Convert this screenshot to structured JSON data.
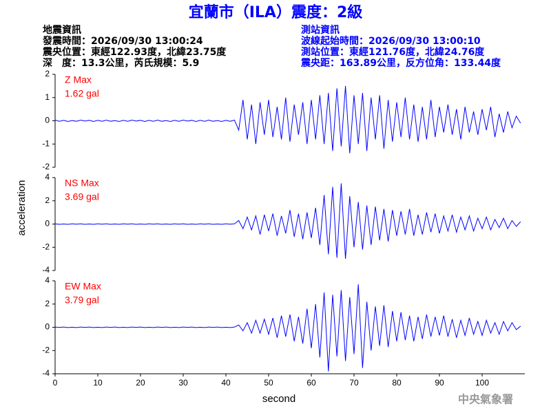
{
  "header": {
    "title": "宜蘭市（ILA）震度：2級",
    "left": [
      "地震資訊",
      "發震時間：2026/09/30 13:00:24",
      "震央位置：東經122.93度，北緯23.75度",
      "深　度：13.3公里，芮氏規模：5.9"
    ],
    "right": [
      "測站資訊",
      "波線起始時間：2026/09/30 13:00:10",
      "測站位置：東經121.76度，北緯24.76度",
      "震央距：163.89公里，反方位角：133.44度"
    ],
    "footer": "中央氣象署"
  },
  "chart_data": {
    "type": "line",
    "xlabel": "second",
    "ylabel": "acceleration",
    "xlim": [
      0,
      110
    ],
    "xticks": [
      0,
      10,
      20,
      30,
      40,
      50,
      60,
      70,
      80,
      90,
      100
    ],
    "x": [
      0,
      1,
      2,
      3,
      4,
      5,
      6,
      7,
      8,
      9,
      10,
      11,
      12,
      13,
      14,
      15,
      16,
      17,
      18,
      19,
      20,
      21,
      22,
      23,
      24,
      25,
      26,
      27,
      28,
      29,
      30,
      31,
      32,
      33,
      34,
      35,
      36,
      37,
      38,
      39,
      40,
      41,
      42,
      43,
      44,
      45,
      46,
      47,
      48,
      49,
      50,
      51,
      52,
      53,
      54,
      55,
      56,
      57,
      58,
      59,
      60,
      61,
      62,
      63,
      64,
      65,
      66,
      67,
      68,
      69,
      70,
      71,
      72,
      73,
      74,
      75,
      76,
      77,
      78,
      79,
      80,
      81,
      82,
      83,
      84,
      85,
      86,
      87,
      88,
      89,
      90,
      91,
      92,
      93,
      94,
      95,
      96,
      97,
      98,
      99,
      100,
      101,
      102,
      103,
      104,
      105,
      106,
      107,
      108,
      109
    ],
    "series": [
      {
        "name": "Z Max",
        "annotation": "1.62 gal",
        "color": "#0000ff",
        "ylim": [
          -2,
          2
        ],
        "yticks": [
          -2,
          -1,
          0,
          1,
          2
        ],
        "values": [
          0.03,
          -0.02,
          0.02,
          -0.03,
          0.01,
          -0.02,
          0.03,
          -0.01,
          0.02,
          -0.03,
          0.02,
          -0.02,
          0.03,
          -0.02,
          0.01,
          -0.03,
          0.02,
          -0.02,
          0.03,
          -0.01,
          0.02,
          -0.03,
          0.02,
          -0.02,
          0.03,
          -0.02,
          0.01,
          -0.03,
          0.02,
          -0.02,
          0.03,
          -0.01,
          0.02,
          -0.03,
          0.02,
          -0.02,
          0.03,
          -0.02,
          0.01,
          -0.03,
          0.02,
          -0.02,
          0.03,
          -0.4,
          0.9,
          -0.8,
          0.7,
          -1.0,
          0.8,
          -0.6,
          0.9,
          -0.7,
          0.6,
          -0.8,
          1.0,
          -0.9,
          0.7,
          -0.6,
          0.8,
          -1.0,
          0.9,
          -0.8,
          1.1,
          -1.0,
          1.2,
          -1.3,
          1.4,
          -1.1,
          1.5,
          -1.4,
          1.1,
          -1.0,
          1.2,
          -1.3,
          1.0,
          -0.8,
          1.1,
          -1.2,
          0.9,
          -0.9,
          0.8,
          -0.7,
          1.0,
          -0.8,
          0.7,
          -0.9,
          0.6,
          -0.8,
          0.9,
          -0.7,
          0.6,
          -0.5,
          0.7,
          -0.6,
          0.5,
          -0.8,
          0.6,
          -0.5,
          0.4,
          -0.6,
          0.5,
          -0.4,
          0.6,
          -0.7,
          0.3,
          -0.5,
          0.4,
          -0.3,
          0.2,
          -0.1
        ]
      },
      {
        "name": "NS Max",
        "annotation": "3.69 gal",
        "color": "#0000ff",
        "ylim": [
          -4,
          4
        ],
        "yticks": [
          -4,
          -2,
          0,
          2,
          4
        ],
        "values": [
          0.02,
          -0.02,
          0.01,
          -0.02,
          0.02,
          -0.01,
          0.02,
          -0.02,
          0.01,
          -0.02,
          0.02,
          -0.01,
          0.02,
          -0.02,
          0.01,
          -0.02,
          0.02,
          -0.01,
          0.02,
          -0.02,
          0.01,
          -0.02,
          0.02,
          -0.01,
          0.02,
          -0.02,
          0.01,
          -0.02,
          0.02,
          -0.01,
          0.02,
          -0.02,
          0.01,
          -0.02,
          0.02,
          -0.01,
          0.02,
          -0.02,
          0.01,
          -0.02,
          0.02,
          -0.01,
          0.02,
          0.3,
          -0.4,
          0.6,
          -0.5,
          0.7,
          -0.9,
          0.8,
          -0.6,
          0.9,
          -1.0,
          0.7,
          -0.8,
          1.2,
          -1.1,
          0.9,
          -1.3,
          1.0,
          -1.2,
          1.4,
          -1.8,
          2.5,
          -2.6,
          3.2,
          -2.9,
          3.5,
          -3.0,
          2.4,
          -2.0,
          1.9,
          -2.2,
          1.6,
          -1.8,
          1.5,
          -1.4,
          1.3,
          -1.5,
          1.2,
          -1.0,
          1.1,
          -0.9,
          1.3,
          -1.0,
          0.8,
          -0.9,
          1.0,
          -0.7,
          0.9,
          -0.8,
          0.7,
          -0.6,
          0.8,
          -0.7,
          0.6,
          -0.5,
          0.7,
          -0.6,
          0.5,
          -0.4,
          0.6,
          -0.5,
          0.4,
          -0.3,
          0.5,
          -0.4,
          0.3,
          -0.2,
          0.2
        ]
      },
      {
        "name": "EW Max",
        "annotation": "3.79 gal",
        "color": "#0000ff",
        "ylim": [
          -4,
          4
        ],
        "yticks": [
          -4,
          -2,
          0,
          2,
          4
        ],
        "values": [
          0.02,
          -0.01,
          0.02,
          -0.02,
          0.01,
          -0.02,
          0.02,
          -0.01,
          0.02,
          -0.02,
          0.01,
          -0.02,
          0.02,
          -0.01,
          0.02,
          -0.02,
          0.01,
          -0.02,
          0.02,
          -0.01,
          0.02,
          -0.02,
          0.01,
          -0.02,
          0.02,
          -0.01,
          0.02,
          -0.02,
          0.01,
          -0.02,
          0.02,
          -0.01,
          0.02,
          -0.02,
          0.01,
          -0.02,
          0.02,
          -0.01,
          0.02,
          -0.02,
          0.01,
          -0.02,
          0.02,
          0.2,
          -0.3,
          0.4,
          -0.5,
          0.6,
          -0.5,
          0.7,
          -0.6,
          0.8,
          -0.9,
          1.0,
          -0.8,
          1.1,
          -1.2,
          0.9,
          -1.4,
          1.6,
          -1.8,
          2.0,
          -2.6,
          3.0,
          -3.8,
          2.8,
          -2.5,
          3.2,
          -2.9,
          2.6,
          -2.3,
          3.7,
          -3.5,
          2.2,
          -2.0,
          1.8,
          -1.6,
          1.9,
          -1.7,
          1.4,
          -1.2,
          1.3,
          -1.1,
          1.0,
          -1.2,
          0.9,
          -1.0,
          1.1,
          -0.8,
          0.9,
          -0.7,
          1.0,
          -0.8,
          0.7,
          -0.9,
          0.6,
          -0.7,
          0.8,
          -0.6,
          0.5,
          -0.7,
          0.6,
          -0.5,
          0.4,
          -0.6,
          0.5,
          -0.3,
          0.4,
          -0.2,
          0.1
        ]
      }
    ]
  }
}
